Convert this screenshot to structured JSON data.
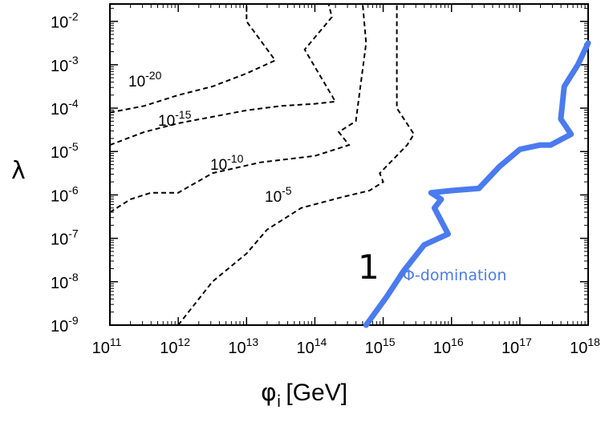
{
  "chart_data": {
    "type": "line",
    "xlabel": {
      "symbol": "φ",
      "subscript": "i",
      "unit": "[GeV]"
    },
    "ylabel": "λ",
    "x_scale": "log",
    "y_scale": "log",
    "xlim_exp": [
      11,
      18
    ],
    "ylim_exp": [
      -9,
      -1.6
    ],
    "x_ticks": [
      {
        "base": "10",
        "exp": "11"
      },
      {
        "base": "10",
        "exp": "12"
      },
      {
        "base": "10",
        "exp": "13"
      },
      {
        "base": "10",
        "exp": "14"
      },
      {
        "base": "10",
        "exp": "15"
      },
      {
        "base": "10",
        "exp": "16"
      },
      {
        "base": "10",
        "exp": "17"
      },
      {
        "base": "10",
        "exp": "18"
      }
    ],
    "y_ticks": [
      {
        "base": "10",
        "exp": "-2"
      },
      {
        "base": "10",
        "exp": "-3"
      },
      {
        "base": "10",
        "exp": "-4"
      },
      {
        "base": "10",
        "exp": "-5"
      },
      {
        "base": "10",
        "exp": "-6"
      },
      {
        "base": "10",
        "exp": "-7"
      },
      {
        "base": "10",
        "exp": "-8"
      },
      {
        "base": "10",
        "exp": "-9"
      }
    ],
    "contours": [
      {
        "label_base": "10",
        "label_exp": "-20",
        "points": [
          [
            11.0,
            -4.1
          ],
          [
            11.5,
            -3.95
          ],
          [
            12.0,
            -3.7
          ],
          [
            12.5,
            -3.5
          ],
          [
            13.0,
            -3.2
          ],
          [
            13.42,
            -2.9
          ],
          [
            13.0,
            -2.0
          ],
          [
            13.0,
            -1.6
          ]
        ]
      },
      {
        "label_base": "10",
        "label_exp": "-15",
        "points": [
          [
            11.0,
            -4.85
          ],
          [
            11.5,
            -4.55
          ],
          [
            12.0,
            -4.35
          ],
          [
            12.5,
            -4.2
          ],
          [
            13.0,
            -4.05
          ],
          [
            13.5,
            -3.95
          ],
          [
            14.0,
            -3.9
          ],
          [
            14.3,
            -3.85
          ],
          [
            13.85,
            -2.65
          ],
          [
            14.25,
            -1.9
          ],
          [
            14.2,
            -1.6
          ]
        ]
      },
      {
        "label_base": "10",
        "label_exp": "-10",
        "points": [
          [
            11.0,
            -6.4
          ],
          [
            11.3,
            -6.1
          ],
          [
            11.6,
            -5.95
          ],
          [
            12.0,
            -5.95
          ],
          [
            12.5,
            -5.5
          ],
          [
            13.2,
            -5.25
          ],
          [
            14.0,
            -5.1
          ],
          [
            14.5,
            -4.85
          ],
          [
            14.35,
            -4.55
          ],
          [
            14.6,
            -4.3
          ],
          [
            14.75,
            -2.5
          ],
          [
            14.7,
            -1.6
          ]
        ]
      },
      {
        "label_base": "10",
        "label_exp": "-5",
        "points": [
          [
            12.0,
            -9.0
          ],
          [
            12.5,
            -8.0
          ],
          [
            13.0,
            -7.35
          ],
          [
            13.3,
            -6.8
          ],
          [
            13.8,
            -6.3
          ],
          [
            14.4,
            -6.05
          ],
          [
            14.8,
            -5.9
          ],
          [
            15.0,
            -5.7
          ],
          [
            14.95,
            -5.5
          ],
          [
            15.35,
            -4.85
          ],
          [
            15.45,
            -4.6
          ],
          [
            15.2,
            -4.0
          ],
          [
            15.2,
            -1.6
          ]
        ]
      }
    ],
    "domination_line": {
      "color": "#4a7bef",
      "label": "Φ-domination",
      "points": [
        [
          14.75,
          -9.0
        ],
        [
          15.05,
          -8.35
        ],
        [
          15.3,
          -7.75
        ],
        [
          15.6,
          -7.15
        ],
        [
          15.95,
          -6.9
        ],
        [
          15.75,
          -6.3
        ],
        [
          15.85,
          -6.1
        ],
        [
          15.7,
          -5.95
        ],
        [
          16.0,
          -5.9
        ],
        [
          16.4,
          -5.85
        ],
        [
          16.7,
          -5.35
        ],
        [
          17.0,
          -4.95
        ],
        [
          17.3,
          -4.85
        ],
        [
          17.45,
          -4.85
        ],
        [
          17.75,
          -4.6
        ],
        [
          17.6,
          -4.25
        ],
        [
          17.65,
          -3.5
        ],
        [
          17.85,
          -3.0
        ],
        [
          18.0,
          -2.5
        ]
      ]
    },
    "annotation": {
      "text": "1"
    }
  }
}
